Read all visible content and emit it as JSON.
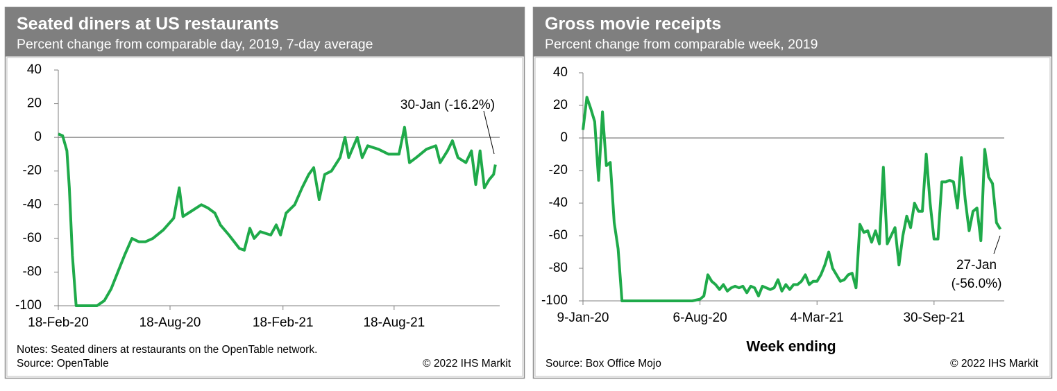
{
  "chart_data": [
    {
      "type": "line",
      "title": "Seated diners at US restaurants",
      "subtitle": "Percent change from comparable day, 2019, 7-day average",
      "color": "#1faa4a",
      "hline": 0,
      "xlim": [
        "2020-02-18",
        "2022-02-06"
      ],
      "xticks": [
        {
          "value": "2020-02-18",
          "label": "18-Feb-20"
        },
        {
          "value": "2020-08-18",
          "label": "18-Aug-20"
        },
        {
          "value": "2021-02-18",
          "label": "18-Feb-21"
        },
        {
          "value": "2021-08-18",
          "label": "18-Aug-21"
        }
      ],
      "ylim": [
        -100,
        40
      ],
      "yticks": [
        -100,
        -80,
        -60,
        -40,
        -20,
        0,
        20,
        40
      ],
      "x": [
        "2020-02-18",
        "2020-02-25",
        "2020-03-03",
        "2020-03-07",
        "2020-03-12",
        "2020-03-18",
        "2020-04-21",
        "2020-05-03",
        "2020-05-14",
        "2020-05-25",
        "2020-06-05",
        "2020-06-17",
        "2020-06-28",
        "2020-07-09",
        "2020-07-21",
        "2020-08-07",
        "2020-08-24",
        "2020-09-02",
        "2020-09-08",
        "2020-09-21",
        "2020-10-08",
        "2020-10-19",
        "2020-10-30",
        "2020-11-08",
        "2020-11-22",
        "2020-12-09",
        "2020-12-17",
        "2020-12-26",
        "2021-01-02",
        "2021-01-12",
        "2021-01-29",
        "2021-02-07",
        "2021-02-14",
        "2021-02-23",
        "2021-03-09",
        "2021-03-21",
        "2021-04-01",
        "2021-04-09",
        "2021-04-18",
        "2021-04-27",
        "2021-05-08",
        "2021-05-22",
        "2021-05-30",
        "2021-06-05",
        "2021-06-19",
        "2021-06-27",
        "2021-07-06",
        "2021-07-23",
        "2021-08-09",
        "2021-08-26",
        "2021-09-04",
        "2021-09-12",
        "2021-09-23",
        "2021-10-10",
        "2021-10-25",
        "2021-11-01",
        "2021-11-13",
        "2021-11-21",
        "2021-11-30",
        "2021-12-13",
        "2021-12-22",
        "2021-12-29",
        "2022-01-05",
        "2022-01-12",
        "2022-01-20",
        "2022-01-27",
        "2022-01-30"
      ],
      "values": [
        2,
        1,
        -8,
        -30,
        -70,
        -100,
        -100,
        -97,
        -90,
        -80,
        -70,
        -60,
        -62,
        -62,
        -60,
        -55,
        -48,
        -30,
        -47,
        -44,
        -40,
        -42,
        -45,
        -52,
        -58,
        -66,
        -67,
        -54,
        -60,
        -56,
        -58,
        -52,
        -58,
        -45,
        -40,
        -30,
        -22,
        -18,
        -37,
        -22,
        -20,
        -12,
        0,
        -12,
        0,
        -12,
        -5,
        -7,
        -10,
        -10,
        6,
        -15,
        -12,
        -7,
        -5,
        -15,
        -8,
        -2,
        -12,
        -15,
        -8,
        -28,
        -8,
        -30,
        -25,
        -22,
        -16.2
      ],
      "annotation": [
        "30-Jan (-16.2%)"
      ],
      "footnotes": [
        "Notes: Seated diners at restaurants on the OpenTable network.",
        "Source: OpenTable"
      ],
      "copyright": "© 2022 IHS Markit"
    },
    {
      "type": "line",
      "title": "Gross movie receipts",
      "subtitle": "Percent change from comparable week, 2019",
      "color": "#1faa4a",
      "hline": 0,
      "x_label": "Week ending",
      "xlim": [
        "2020-01-09",
        "2022-02-03"
      ],
      "xticks": [
        {
          "value": "2020-01-09",
          "label": "9-Jan-20"
        },
        {
          "value": "2020-08-06",
          "label": "6-Aug-20"
        },
        {
          "value": "2021-03-04",
          "label": "4-Mar-21"
        },
        {
          "value": "2021-09-30",
          "label": "30-Sep-21"
        }
      ],
      "ylim": [
        -100,
        40
      ],
      "yticks": [
        -100,
        -80,
        -60,
        -40,
        -20,
        0,
        20,
        40
      ],
      "x": [
        "2020-01-09",
        "2020-01-16",
        "2020-01-23",
        "2020-01-30",
        "2020-02-06",
        "2020-02-13",
        "2020-02-20",
        "2020-02-27",
        "2020-03-05",
        "2020-03-12",
        "2020-03-19",
        "2020-05-28",
        "2020-07-02",
        "2020-07-23",
        "2020-08-06",
        "2020-08-13",
        "2020-08-20",
        "2020-08-27",
        "2020-09-03",
        "2020-09-10",
        "2020-09-17",
        "2020-09-24",
        "2020-10-01",
        "2020-10-08",
        "2020-10-15",
        "2020-10-22",
        "2020-10-29",
        "2020-11-05",
        "2020-11-12",
        "2020-11-19",
        "2020-11-26",
        "2020-12-03",
        "2020-12-10",
        "2020-12-17",
        "2020-12-24",
        "2020-12-31",
        "2021-01-07",
        "2021-01-14",
        "2021-01-21",
        "2021-01-28",
        "2021-02-04",
        "2021-02-11",
        "2021-02-18",
        "2021-02-25",
        "2021-03-04",
        "2021-03-11",
        "2021-03-18",
        "2021-03-25",
        "2021-04-01",
        "2021-04-08",
        "2021-04-15",
        "2021-04-22",
        "2021-04-29",
        "2021-05-06",
        "2021-05-13",
        "2021-05-20",
        "2021-05-27",
        "2021-06-03",
        "2021-06-10",
        "2021-06-17",
        "2021-06-24",
        "2021-07-01",
        "2021-07-08",
        "2021-07-15",
        "2021-07-22",
        "2021-07-29",
        "2021-08-05",
        "2021-08-12",
        "2021-08-19",
        "2021-08-26",
        "2021-09-02",
        "2021-09-09",
        "2021-09-16",
        "2021-09-23",
        "2021-09-30",
        "2021-10-07",
        "2021-10-14",
        "2021-10-21",
        "2021-10-28",
        "2021-11-04",
        "2021-11-11",
        "2021-11-18",
        "2021-11-25",
        "2021-12-02",
        "2021-12-09",
        "2021-12-16",
        "2021-12-23",
        "2021-12-30",
        "2022-01-06",
        "2022-01-13",
        "2022-01-20",
        "2022-01-27"
      ],
      "values": [
        5,
        25,
        18,
        10,
        -26,
        16,
        -17,
        -15,
        -52,
        -68,
        -100,
        -100,
        -100,
        -100,
        -99,
        -97,
        -84,
        -88,
        -90,
        -93,
        -90,
        -94,
        -92,
        -91,
        -92,
        -91,
        -95,
        -91,
        -92,
        -97,
        -91,
        -92,
        -93,
        -92,
        -87,
        -94,
        -90,
        -93,
        -90,
        -90,
        -88,
        -84,
        -90,
        -88,
        -88,
        -84,
        -78,
        -70,
        -80,
        -84,
        -88,
        -87,
        -84,
        -83,
        -92,
        -53,
        -58,
        -57,
        -64,
        -57,
        -65,
        -18,
        -65,
        -60,
        -55,
        -78,
        -60,
        -48,
        -55,
        -40,
        -45,
        -45,
        -10,
        -40,
        -62,
        -62,
        -27,
        -27,
        -26,
        -27,
        -43,
        -12,
        -38,
        -57,
        -45,
        -43,
        -63,
        -7,
        -24,
        -28,
        -52,
        -56
      ],
      "annotation": [
        "27-Jan",
        "(-56.0%)"
      ],
      "footnotes": [
        "Source: Box Office Mojo"
      ],
      "copyright": "© 2022 IHS Markit"
    }
  ]
}
